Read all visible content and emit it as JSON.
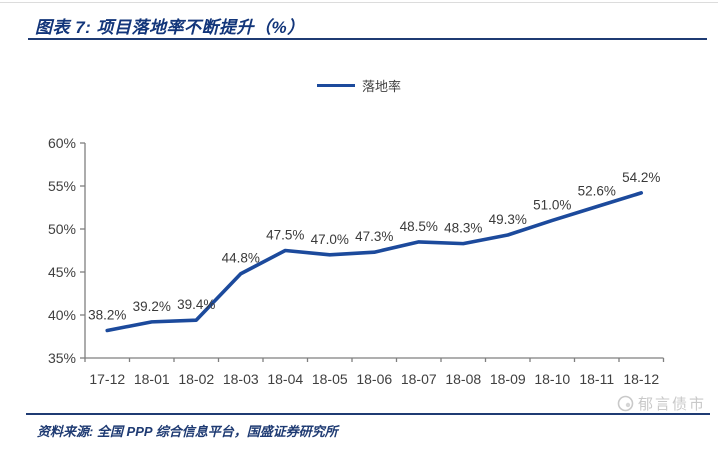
{
  "header": {
    "title": "图表 7: 项目落地率不断提升（%）"
  },
  "chart_data": {
    "type": "line",
    "title": "项目落地率不断提升（%）",
    "categories": [
      "17-12",
      "18-01",
      "18-02",
      "18-03",
      "18-04",
      "18-05",
      "18-06",
      "18-07",
      "18-08",
      "18-09",
      "18-10",
      "18-11",
      "18-12"
    ],
    "series": [
      {
        "name": "落地率",
        "values": [
          38.2,
          39.2,
          39.4,
          44.8,
          47.5,
          47.0,
          47.3,
          48.5,
          48.3,
          49.3,
          51.0,
          52.6,
          54.2
        ]
      }
    ],
    "xlabel": "",
    "ylabel": "",
    "ylim": [
      35,
      60
    ],
    "ytick_step": 5,
    "ytick_suffix": "%",
    "grid": false,
    "legend_position": "top-center",
    "data_labels": true,
    "data_label_suffix": "%",
    "line_color": "#1c4a9c",
    "axis_color": "#7f7f7f",
    "tick_label_color": "#404040",
    "data_label_color": "#3a3a3a"
  },
  "footer": {
    "source": "资料来源: 全国 PPP 综合信息平台，国盛证券研究所",
    "watermark": "郁言债市"
  },
  "colors": {
    "accent_rule": "#1f3b73",
    "title_text": "#12357a",
    "line": "#1c4a9c",
    "watermark": "#c9c9c9"
  }
}
